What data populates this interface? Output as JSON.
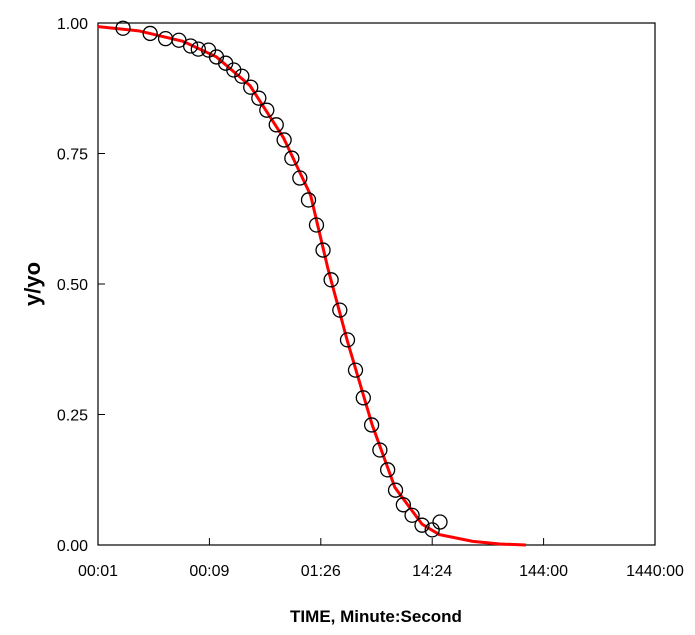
{
  "chart_data": {
    "type": "scatter",
    "x_label": "TIME, Minute:Second",
    "y_label": "y/yo",
    "xscale": "log",
    "xlim": [
      0.864,
      86400
    ],
    "xticks": [
      {
        "value": 0.864,
        "label": "00:01"
      },
      {
        "value": 8.64,
        "label": "00:09"
      },
      {
        "value": 86.4,
        "label": "01:26"
      },
      {
        "value": 864,
        "label": "14:24"
      },
      {
        "value": 8640,
        "label": "144:00"
      },
      {
        "value": 86400,
        "label": "1440:00"
      }
    ],
    "ylim": [
      0,
      1
    ],
    "yticks": [
      {
        "value": 0,
        "label": "0.00"
      },
      {
        "value": 0.25,
        "label": "0.25"
      },
      {
        "value": 0.5,
        "label": "0.50"
      },
      {
        "value": 0.75,
        "label": "0.75"
      },
      {
        "value": 1,
        "label": "1.00"
      }
    ],
    "series": [
      {
        "kind": "line",
        "color": "#ff0000",
        "x": [
          0.864,
          2,
          5,
          10,
          20,
          40,
          70,
          100,
          150,
          250,
          400,
          700,
          1000,
          2000,
          3500,
          6000
        ],
        "values": [
          0.993,
          0.985,
          0.965,
          0.935,
          0.88,
          0.78,
          0.67,
          0.53,
          0.39,
          0.23,
          0.11,
          0.04,
          0.02,
          0.007,
          0.002,
          0
        ]
      },
      {
        "kind": "markers",
        "color": "#000000",
        "x": [
          1.45,
          2.54,
          3.49,
          4.6,
          5.86,
          6.87,
          8.5,
          10,
          12.1,
          14.3,
          16.9,
          20.3,
          24,
          28.3,
          34.4,
          40.5,
          47.5,
          56,
          67,
          79,
          90.5,
          107,
          128,
          150,
          177,
          208,
          247,
          293,
          344,
          405,
          476,
          570,
          700,
          864,
          1015
        ],
        "values": [
          0.99,
          0.98,
          0.97,
          0.967,
          0.956,
          0.95,
          0.948,
          0.935,
          0.923,
          0.91,
          0.898,
          0.877,
          0.856,
          0.833,
          0.805,
          0.776,
          0.741,
          0.703,
          0.661,
          0.613,
          0.565,
          0.508,
          0.45,
          0.393,
          0.335,
          0.282,
          0.23,
          0.182,
          0.144,
          0.105,
          0.077,
          0.057,
          0.038,
          0.029,
          0.044
        ]
      }
    ]
  }
}
